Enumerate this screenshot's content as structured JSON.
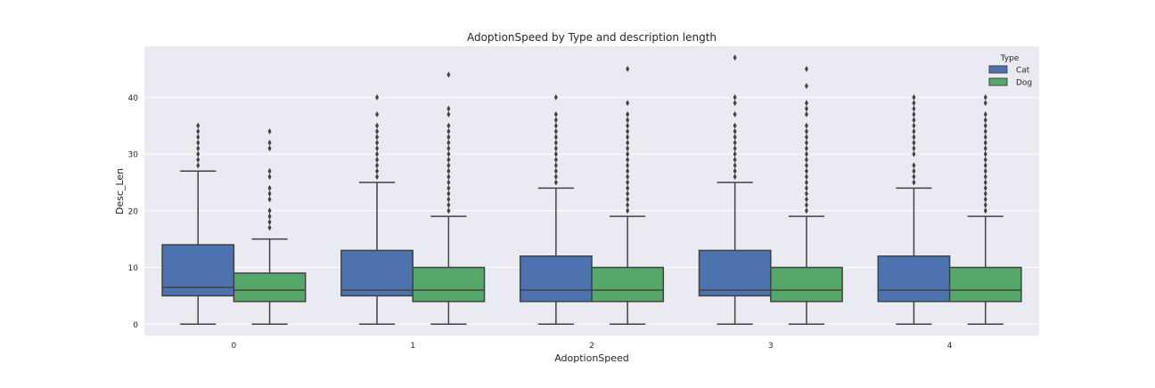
{
  "chart_data": {
    "type": "box",
    "title": "AdoptionSpeed by Type and description length",
    "xlabel": "AdoptionSpeed",
    "ylabel": "Desc_Len",
    "ylim": [
      -2,
      49
    ],
    "yticks": [
      0,
      10,
      20,
      30,
      40
    ],
    "categories": [
      "0",
      "1",
      "2",
      "3",
      "4"
    ],
    "grid": true,
    "legend": {
      "title": "Type",
      "placement": "top-right"
    },
    "series": [
      {
        "name": "Cat",
        "color": "#4c72b0",
        "boxes": [
          {
            "min": 0,
            "q1": 5,
            "median": 6.5,
            "q3": 14,
            "max": 27,
            "outliers": [
              28,
              29,
              30,
              31,
              32,
              33,
              34,
              35
            ]
          },
          {
            "min": 0,
            "q1": 5,
            "median": 6,
            "q3": 13,
            "max": 25,
            "outliers": [
              26,
              27,
              28,
              29,
              30,
              31,
              32,
              33,
              34,
              35,
              37,
              40
            ]
          },
          {
            "min": 0,
            "q1": 4,
            "median": 6,
            "q3": 12,
            "max": 24,
            "outliers": [
              25,
              26,
              27,
              28,
              29,
              30,
              31,
              32,
              33,
              34,
              35,
              36,
              37,
              40
            ]
          },
          {
            "min": 0,
            "q1": 5,
            "median": 6,
            "q3": 13,
            "max": 25,
            "outliers": [
              26,
              27,
              28,
              29,
              30,
              31,
              32,
              33,
              34,
              35,
              37,
              39,
              40,
              47
            ]
          },
          {
            "min": 0,
            "q1": 4,
            "median": 6,
            "q3": 12,
            "max": 24,
            "outliers": [
              25,
              26,
              27,
              28,
              30,
              31,
              32,
              33,
              34,
              35,
              36,
              37,
              38,
              39,
              40
            ]
          }
        ]
      },
      {
        "name": "Dog",
        "color": "#55a868",
        "boxes": [
          {
            "min": 0,
            "q1": 4,
            "median": 6,
            "q3": 9,
            "max": 15,
            "outliers": [
              17,
              18,
              19,
              20,
              22,
              23,
              24,
              26,
              27,
              31,
              32,
              34
            ]
          },
          {
            "min": 0,
            "q1": 4,
            "median": 6,
            "q3": 10,
            "max": 19,
            "outliers": [
              20,
              21,
              22,
              23,
              24,
              25,
              26,
              27,
              28,
              29,
              30,
              31,
              32,
              33,
              34,
              35,
              37,
              38,
              44
            ]
          },
          {
            "min": 0,
            "q1": 4,
            "median": 6,
            "q3": 10,
            "max": 19,
            "outliers": [
              20,
              21,
              22,
              23,
              24,
              25,
              26,
              27,
              28,
              29,
              30,
              31,
              32,
              33,
              34,
              35,
              36,
              37,
              39,
              45
            ]
          },
          {
            "min": 0,
            "q1": 4,
            "median": 6,
            "q3": 10,
            "max": 19,
            "outliers": [
              20,
              21,
              22,
              23,
              24,
              25,
              26,
              27,
              28,
              29,
              30,
              31,
              32,
              33,
              34,
              35,
              37,
              38,
              39,
              42,
              45
            ]
          },
          {
            "min": 0,
            "q1": 4,
            "median": 6,
            "q3": 10,
            "max": 19,
            "outliers": [
              20,
              21,
              22,
              23,
              24,
              25,
              26,
              27,
              28,
              29,
              30,
              31,
              32,
              33,
              34,
              35,
              36,
              37,
              39,
              40
            ]
          }
        ]
      }
    ]
  }
}
